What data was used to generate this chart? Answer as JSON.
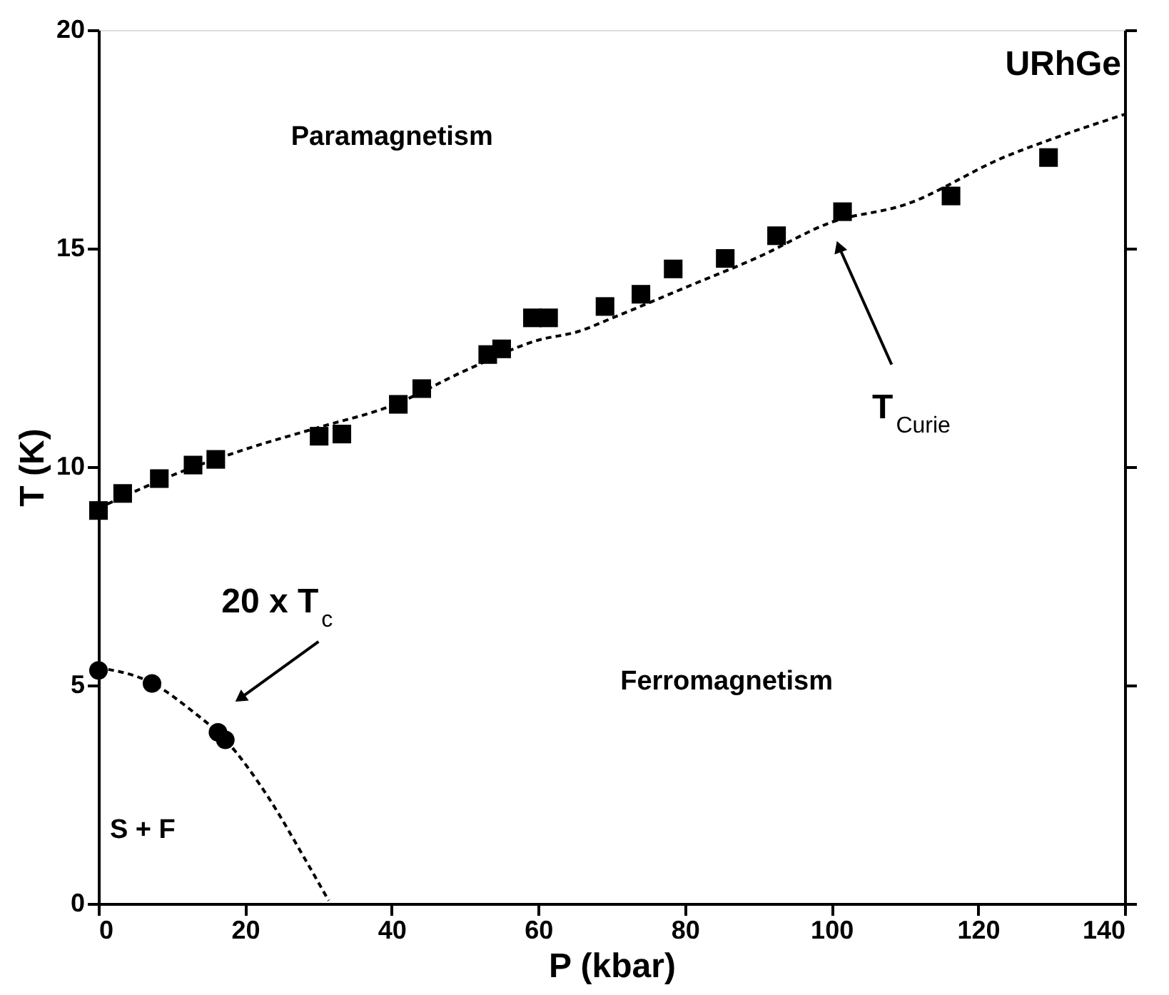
{
  "chart_data": {
    "type": "scatter",
    "xlabel": "P (kbar)",
    "ylabel": "T (K)",
    "xlim": [
      0,
      140
    ],
    "ylim": [
      0,
      20
    ],
    "xticks": [
      0,
      20,
      40,
      60,
      80,
      100,
      120,
      140
    ],
    "yticks": [
      0,
      5,
      10,
      15,
      20
    ],
    "series": [
      {
        "type": "line",
        "line_style": "dashed",
        "marker": "none",
        "color": "#000000",
        "x": [
          0,
          10,
          20,
          30,
          40,
          50,
          60,
          65.5,
          70,
          80,
          90,
          100,
          110,
          123.7,
          130,
          140
        ],
        "values": [
          9.05,
          9.8,
          10.4,
          10.9,
          11.4,
          12.2,
          12.9,
          13.1,
          13.4,
          14.1,
          14.8,
          15.6,
          16.0,
          17.1,
          17.5,
          18.07
        ]
      },
      {
        "type": "line",
        "line_style": "dashed",
        "marker": "none",
        "color": "#000000",
        "x": [
          0,
          7.3,
          12.7,
          17.3,
          23.3,
          28,
          31.4
        ],
        "values": [
          5.4,
          5.05,
          4.42,
          3.75,
          2.4,
          1.07,
          0.07
        ]
      },
      {
        "marker": "square",
        "color": "#000000",
        "x": [
          0,
          3.3,
          8.3,
          12.9,
          16.0,
          30.1,
          33.2,
          40.9,
          44.1,
          53.1,
          55,
          59.2,
          61.4,
          69.1,
          74,
          78.4,
          85.5,
          92.5,
          101.5,
          116.3,
          129.6
        ],
        "values": [
          9.0,
          9.39,
          9.73,
          10.04,
          10.17,
          10.7,
          10.75,
          11.43,
          11.79,
          12.57,
          12.7,
          13.41,
          13.41,
          13.67,
          13.95,
          14.53,
          14.77,
          15.29,
          15.84,
          16.2,
          17.08
        ]
      },
      {
        "marker": "circle",
        "color": "#000000",
        "x": [
          0,
          7.3,
          16.3,
          17.3
        ],
        "values": [
          5.34,
          5.04,
          3.92,
          3.75
        ]
      }
    ],
    "annotations": [
      "Paramagnetism",
      "URhGe",
      "Ferromagnetism",
      "S + F",
      {
        "text": "T$_{Curie}$",
        "x": 101,
        "y": 15.04
      },
      "20 x T$_{c}$"
    ]
  }
}
